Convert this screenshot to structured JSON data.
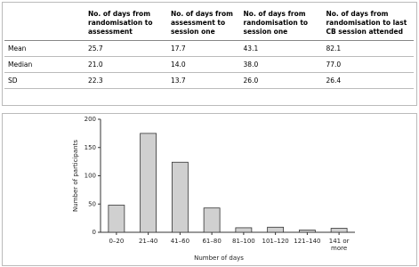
{
  "table": {
    "headers": [
      "No. of days from randomisation to assessment",
      "No. of days from assessment to session one",
      "No. of days from randomisation to session one",
      "No. of days from randomisation to last CB session attended"
    ],
    "rows": [
      [
        "Mean",
        "25.7",
        "17.7",
        "43.1",
        "82.1"
      ],
      [
        "Median",
        "21.0",
        "14.0",
        "38.0",
        "77.0"
      ],
      [
        "SD",
        "22.3",
        "13.7",
        "26.0",
        "26.4"
      ]
    ]
  },
  "chart_data": {
    "type": "bar",
    "x_label": "Number of days",
    "y_label": "Number of participants",
    "categories": [
      "0–20",
      "21–40",
      "41–60",
      "61–80",
      "81–100",
      "101–120",
      "121–140",
      "141 or more"
    ],
    "values": [
      48,
      175,
      124,
      43,
      8,
      9,
      4,
      7
    ],
    "color": "#d0d0d0",
    "ylim": [
      0,
      200
    ],
    "yticks": [
      0,
      50,
      100,
      150,
      200
    ]
  }
}
